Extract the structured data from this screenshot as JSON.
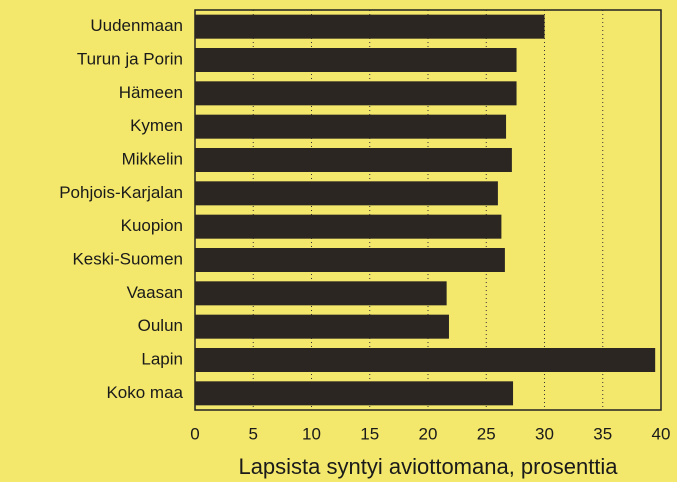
{
  "chart_data": {
    "type": "barh",
    "xlabel": "Lapsista syntyi aviottomana, prosenttia",
    "categories": [
      "Uudenmaan",
      "Turun ja Porin",
      "Hämeen",
      "Kymen",
      "Mikkelin",
      "Pohjois-Karjalan",
      "Kuopion",
      "Keski-Suomen",
      "Vaasan",
      "Oulun",
      "Lapin",
      "Koko maa"
    ],
    "values": [
      30,
      27.6,
      27.6,
      26.7,
      27.2,
      26,
      26.3,
      26.6,
      21.6,
      21.8,
      39.5,
      27.3
    ],
    "color": "#2b2622",
    "xlim": [
      0,
      40
    ],
    "xticks": [
      0,
      5,
      10,
      15,
      20,
      25,
      30,
      35,
      40
    ],
    "grid": true
  }
}
